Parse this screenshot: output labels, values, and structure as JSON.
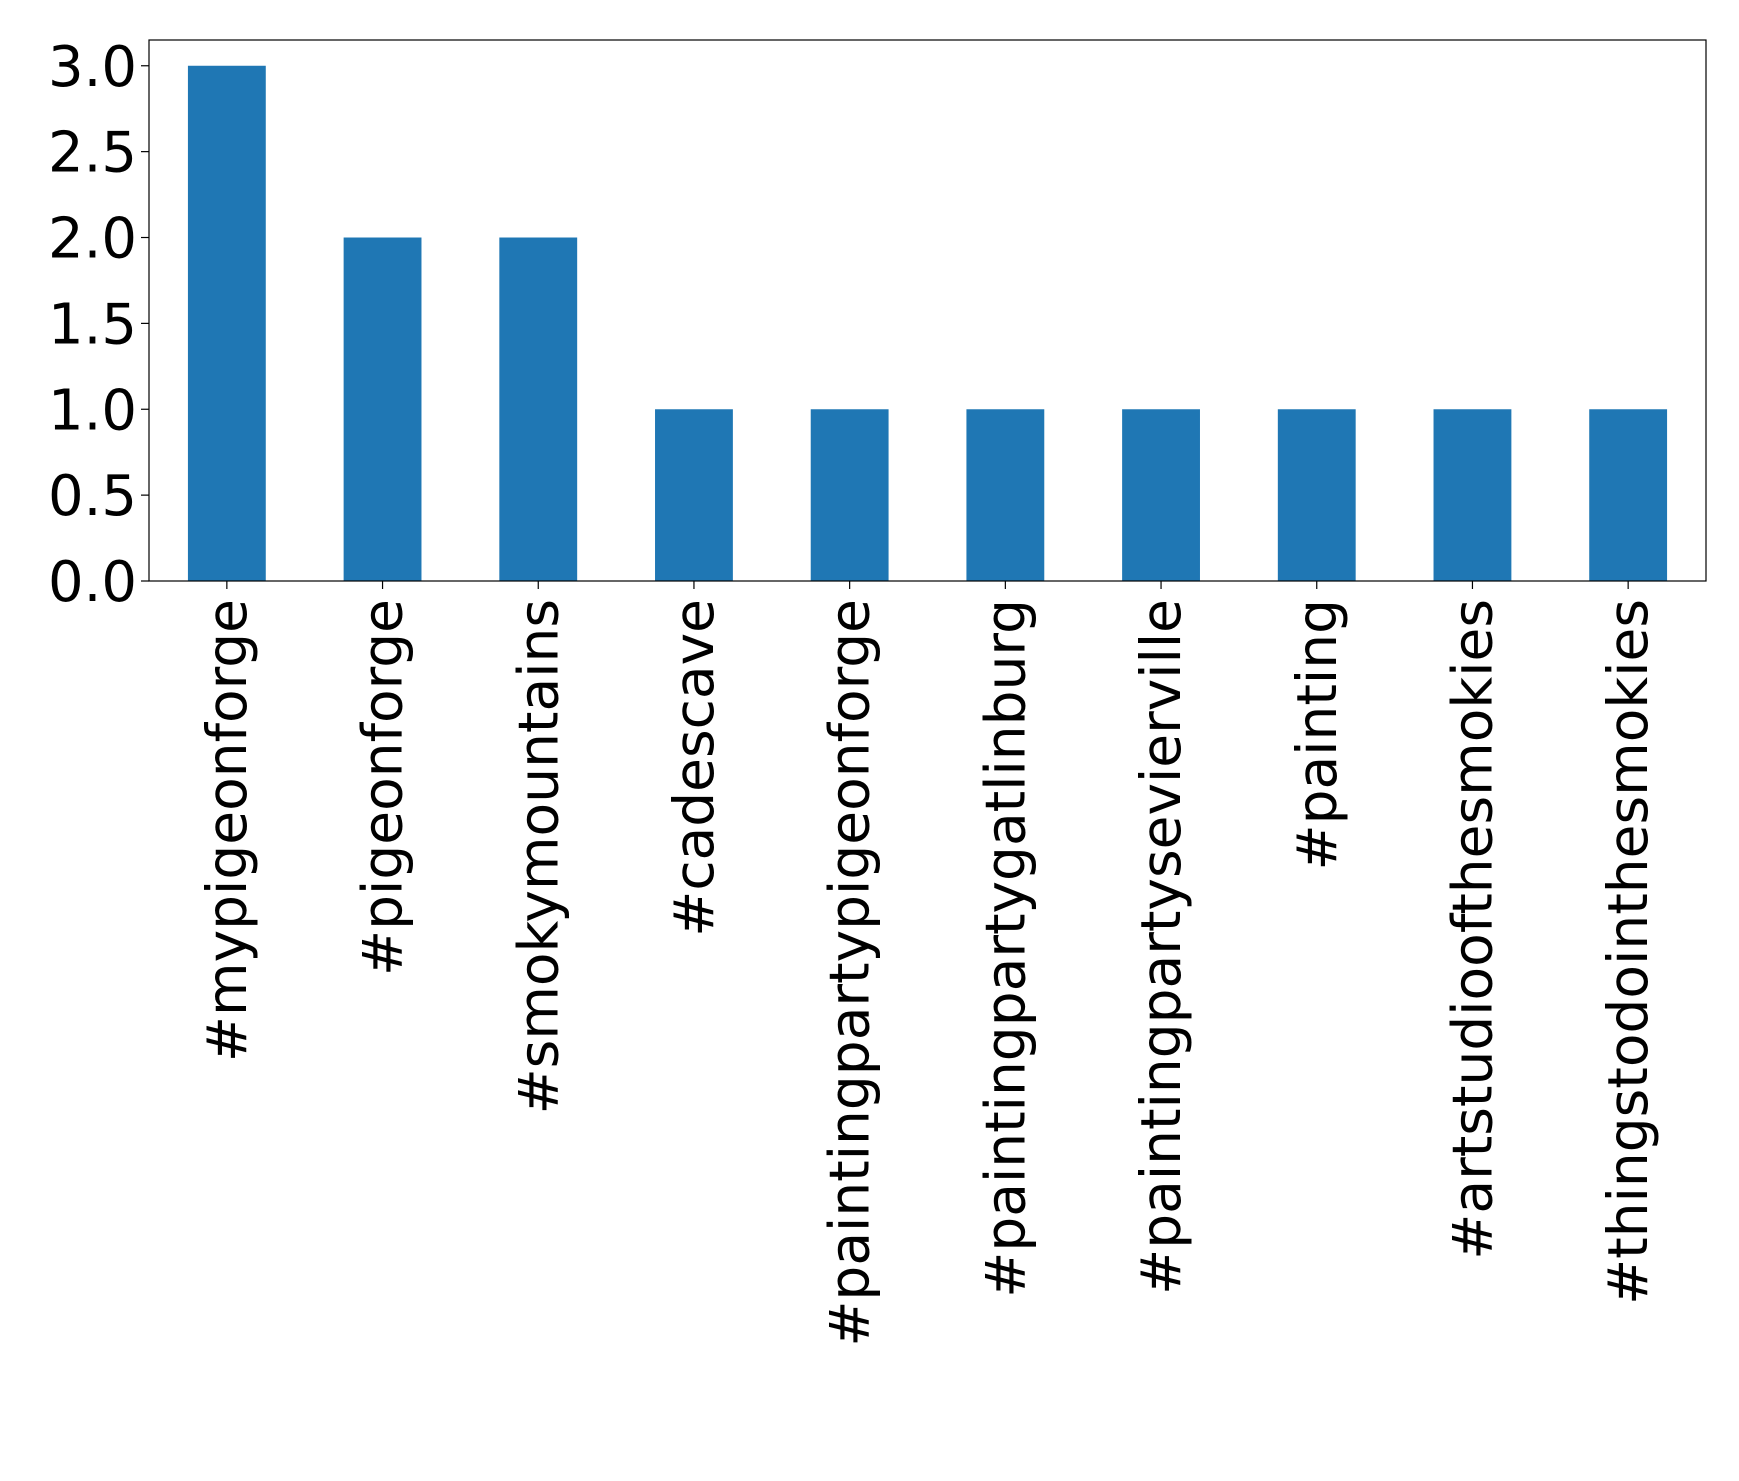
{
  "chart_data": {
    "type": "bar",
    "categories": [
      "#mypigeonforge",
      "#pigeonforge",
      "#smokymountains",
      "#cadescave",
      "#paintingpartypigeonforge",
      "#paintingpartygatlinburg",
      "#paintingpartysevierville",
      "#painting",
      "#artstudioofthesmokies",
      "#thingstodointhesmokies"
    ],
    "values": [
      3,
      2,
      2,
      1,
      1,
      1,
      1,
      1,
      1,
      1
    ],
    "ylim": [
      0,
      3.15
    ],
    "yticks": [
      "0.0",
      "0.5",
      "1.0",
      "1.5",
      "2.0",
      "2.5",
      "3.0"
    ],
    "grid": false,
    "legend": false,
    "bar_color": "#1f77b4"
  }
}
